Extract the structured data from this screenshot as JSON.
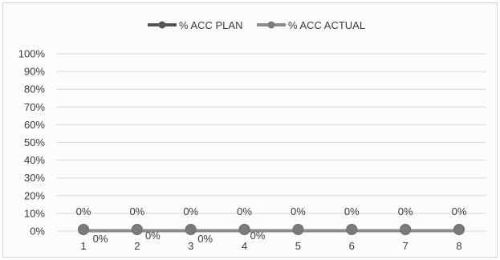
{
  "chart_data": {
    "type": "line",
    "categories": [
      "1",
      "2",
      "3",
      "4",
      "5",
      "6",
      "7",
      "8"
    ],
    "y_ticks": [
      "0%",
      "10%",
      "20%",
      "30%",
      "40%",
      "50%",
      "60%",
      "70%",
      "80%",
      "90%",
      "100%"
    ],
    "ylim": [
      0,
      100
    ],
    "grid": true,
    "legend_position": "top-center",
    "series": [
      {
        "name": "% ACC PLAN",
        "color": "#555555",
        "values": [
          0,
          0,
          0,
          0,
          0,
          0,
          0,
          0
        ],
        "labels": [
          "0%",
          "0%",
          "0%",
          "0%",
          "",
          "",
          "",
          ""
        ]
      },
      {
        "name": "% ACC ACTUAL",
        "color": "#8c8c8c",
        "values": [
          0,
          0,
          0,
          0,
          0,
          0,
          0,
          0
        ],
        "labels": [
          "0%",
          "0%",
          "0%",
          "0%",
          "0%",
          "0%",
          "0%",
          "0%"
        ]
      }
    ]
  }
}
